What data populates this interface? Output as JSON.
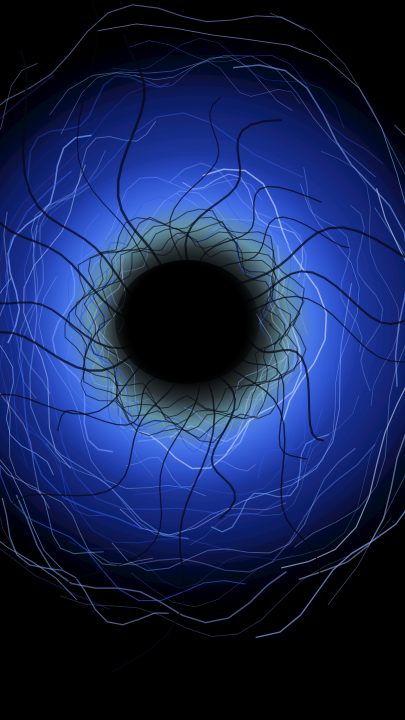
{
  "scene": {
    "subject": "abstract-vortex",
    "colors": {
      "background": "#000000",
      "outer_glow": "#0b1d6b",
      "mid_blue": "#2f59e8",
      "bright_blue": "#7ea6ff",
      "highlight": "#c9ddff",
      "teal_core_ring": "#6fb8b0",
      "core": "#000000",
      "tendrils": "#050812"
    }
  }
}
